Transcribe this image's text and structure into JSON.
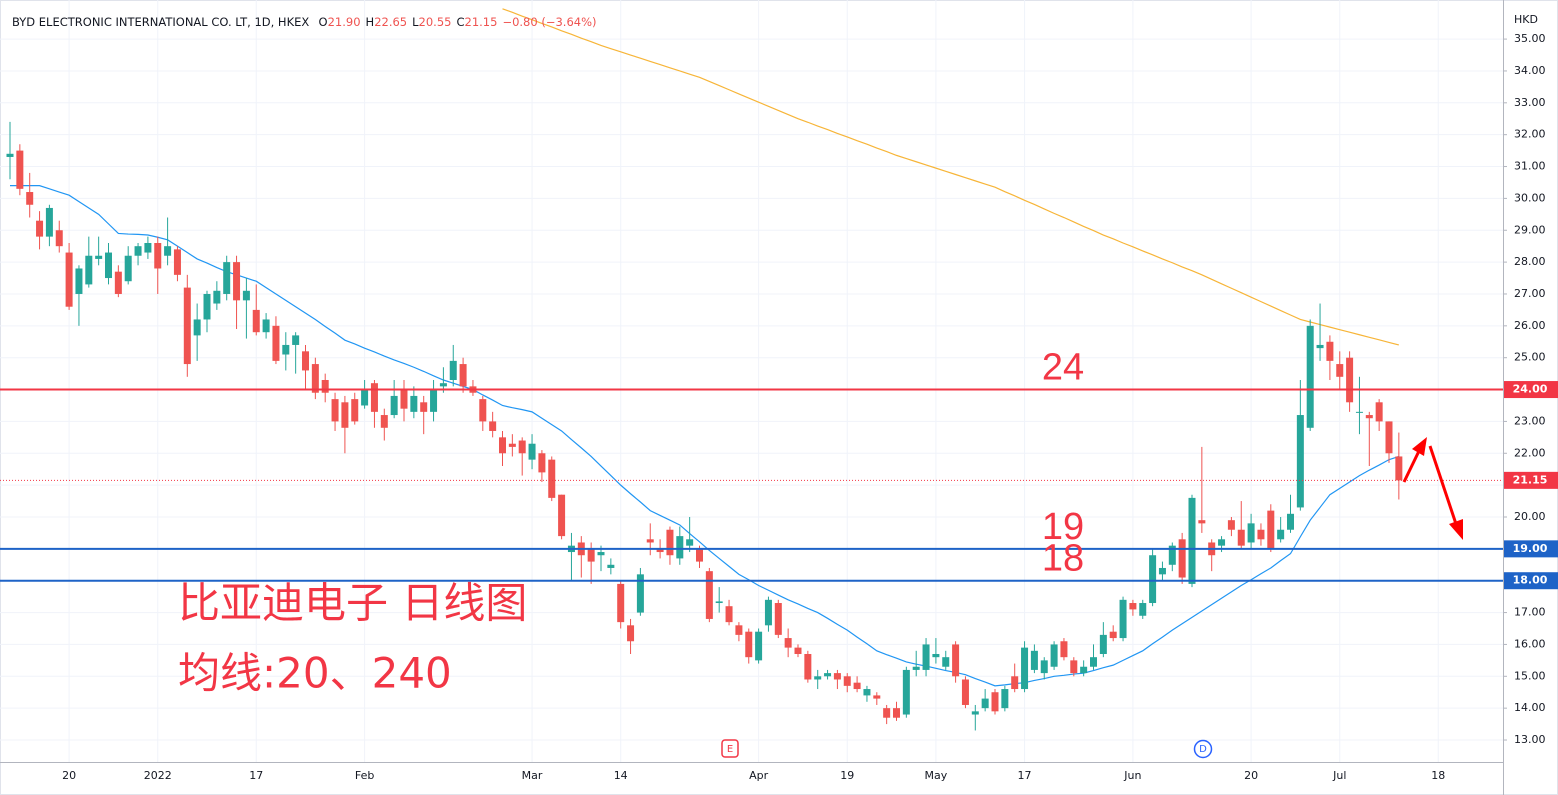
{
  "chart_data": {
    "type": "candlestick",
    "title": "BYD ELECTRONIC INTERNATIONAL CO. LT, 1D, HKEX",
    "ohlc_legend": [
      {
        "key": "O",
        "value": "21.90"
      },
      {
        "key": "H",
        "value": "22.65"
      },
      {
        "key": "L",
        "value": "20.55"
      },
      {
        "key": "C",
        "value": "21.15"
      }
    ],
    "change": "−0.80 (−3.64%)",
    "currency": "HKD",
    "annotations": [
      "比亚迪电子 日线图",
      "均线:20、240"
    ],
    "events": [
      {
        "label": "E",
        "color": "#f23645"
      },
      {
        "label": "D",
        "color": "#2962ff"
      }
    ],
    "up_color": "#26a69a",
    "down_color": "#ef5350",
    "categories": [
      null,
      null,
      null,
      null,
      null,
      null,
      "20",
      null,
      null,
      null,
      null,
      null,
      null,
      null,
      null,
      "2022",
      null,
      null,
      null,
      null,
      null,
      null,
      null,
      null,
      null,
      "17",
      null,
      null,
      null,
      null,
      null,
      null,
      null,
      null,
      null,
      null,
      "Feb",
      null,
      null,
      null,
      null,
      null,
      null,
      null,
      null,
      null,
      null,
      null,
      null,
      null,
      null,
      null,
      null,
      "Mar",
      null,
      null,
      null,
      null,
      null,
      null,
      null,
      null,
      "14",
      null,
      null,
      null,
      null,
      null,
      null,
      null,
      null,
      null,
      null,
      null,
      null,
      null,
      "Apr",
      null,
      null,
      null,
      null,
      null,
      null,
      null,
      null,
      "19",
      null,
      null,
      null,
      null,
      null,
      null,
      null,
      null,
      "May",
      null,
      null,
      null,
      null,
      null,
      null,
      null,
      null,
      "17",
      null,
      null,
      null,
      null,
      null,
      null,
      null,
      null,
      null,
      null,
      "Jun",
      null,
      null,
      null,
      null,
      null,
      null,
      null,
      null,
      null,
      null,
      null,
      "20",
      null,
      null,
      null,
      null,
      null,
      null,
      null,
      null,
      "Jul",
      null,
      null,
      null,
      null,
      null,
      null,
      null,
      null,
      null,
      "18"
    ],
    "open": [
      31.3,
      31.5,
      30.2,
      29.3,
      28.8,
      29.0,
      28.3,
      27.0,
      27.3,
      28.1,
      27.5,
      27.7,
      27.4,
      28.2,
      28.3,
      28.6,
      28.2,
      28.4,
      27.2,
      25.7,
      26.2,
      26.7,
      27.0,
      28.0,
      26.8,
      26.5,
      25.8,
      26.0,
      25.1,
      25.4,
      25.2,
      24.8,
      24.3,
      23.7,
      23.6,
      23.7,
      23.5,
      24.2,
      23.2,
      23.2,
      24.0,
      23.3,
      23.6,
      23.3,
      24.1,
      24.3,
      24.8,
      24.1,
      23.7,
      23.0,
      22.5,
      22.3,
      22.4,
      21.8,
      22.0,
      21.8,
      20.7,
      18.9,
      19.2,
      19.0,
      18.8,
      18.4,
      17.9,
      16.6,
      17.0,
      19.3,
      19.0,
      19.6,
      18.7,
      19.1,
      19.0,
      18.3,
      17.3,
      17.2,
      16.6,
      16.4,
      15.5,
      16.6,
      17.3,
      16.2,
      15.9,
      15.7,
      14.9,
      15.0,
      15.1,
      15.0,
      14.8,
      14.4,
      14.4,
      14.0,
      14.0,
      13.8,
      15.2,
      15.2,
      15.6,
      15.3,
      16.0,
      14.9,
      13.8,
      14.0,
      14.5,
      14.0,
      15.0,
      14.6,
      15.2,
      15.1,
      15.3,
      16.1,
      15.5,
      15.1,
      15.3,
      15.7,
      16.4,
      16.2,
      17.3,
      16.9,
      17.3,
      18.2,
      18.5,
      19.3,
      17.9,
      19.9,
      19.2,
      19.1,
      19.9,
      19.6,
      19.2,
      19.6,
      20.2,
      19.3,
      19.6,
      20.3,
      22.8,
      25.3,
      25.5,
      24.8,
      25.0,
      23.3,
      23.2,
      23.6,
      23.0,
      21.9,
      null,
      null,
      null,
      null
    ],
    "high": [
      32.4,
      31.7,
      30.8,
      29.6,
      29.8,
      29.3,
      28.6,
      27.9,
      28.8,
      28.8,
      28.6,
      27.9,
      28.5,
      28.6,
      28.8,
      28.8,
      29.4,
      28.5,
      27.6,
      26.7,
      27.1,
      27.4,
      28.2,
      28.2,
      27.5,
      27.3,
      26.4,
      26.3,
      25.8,
      25.8,
      25.4,
      25.0,
      24.5,
      23.9,
      23.8,
      23.9,
      24.3,
      24.3,
      23.4,
      24.3,
      24.3,
      24.1,
      23.8,
      24.3,
      24.7,
      25.4,
      25.0,
      24.3,
      23.8,
      23.3,
      22.7,
      22.6,
      22.5,
      22.6,
      22.1,
      21.9,
      20.7,
      19.5,
      19.4,
      19.2,
      19.1,
      18.7,
      18.0,
      16.8,
      18.4,
      19.8,
      19.3,
      19.7,
      19.7,
      20.0,
      19.1,
      18.4,
      17.8,
      17.4,
      16.7,
      16.5,
      16.5,
      17.5,
      17.4,
      16.5,
      16.0,
      15.8,
      15.2,
      15.2,
      15.2,
      15.1,
      15.0,
      14.7,
      14.5,
      14.1,
      14.2,
      15.3,
      15.8,
      16.2,
      16.2,
      15.8,
      16.1,
      15.0,
      14.1,
      14.6,
      14.6,
      14.7,
      15.4,
      16.1,
      16.0,
      15.6,
      16.1,
      16.2,
      15.6,
      15.5,
      16.0,
      16.7,
      16.6,
      17.5,
      17.4,
      17.4,
      19.0,
      18.6,
      19.2,
      19.5,
      20.7,
      22.2,
      19.3,
      19.4,
      20.0,
      20.5,
      20.1,
      19.8,
      20.4,
      20.0,
      20.7,
      24.3,
      26.2,
      26.7,
      25.7,
      25.2,
      25.2,
      24.4,
      23.3,
      23.7,
      23.0,
      22.65,
      null,
      null,
      null,
      null
    ],
    "low": [
      30.6,
      30.1,
      29.4,
      28.4,
      28.5,
      28.3,
      26.5,
      26.0,
      27.2,
      27.9,
      27.3,
      26.9,
      27.3,
      27.9,
      28.1,
      27.0,
      27.9,
      27.4,
      24.4,
      24.9,
      25.8,
      26.5,
      26.8,
      25.9,
      25.6,
      25.7,
      25.6,
      24.8,
      24.6,
      24.5,
      24.0,
      23.7,
      23.6,
      22.7,
      22.0,
      22.9,
      23.4,
      22.8,
      22.4,
      23.1,
      23.0,
      23.1,
      22.6,
      23.0,
      23.9,
      24.1,
      23.9,
      23.8,
      22.7,
      22.5,
      21.6,
      21.9,
      21.3,
      21.5,
      21.1,
      20.5,
      19.3,
      18.0,
      18.1,
      17.9,
      18.3,
      18.2,
      16.5,
      15.7,
      16.9,
      18.8,
      18.7,
      18.5,
      18.5,
      18.9,
      18.4,
      16.7,
      17.0,
      16.6,
      16.1,
      15.4,
      15.4,
      16.4,
      16.2,
      15.6,
      15.6,
      14.8,
      14.6,
      14.9,
      14.6,
      14.5,
      14.5,
      14.2,
      14.1,
      13.5,
      13.6,
      13.7,
      15.0,
      15.0,
      15.4,
      15.2,
      14.8,
      14.0,
      13.3,
      13.9,
      13.8,
      13.9,
      14.5,
      14.5,
      15.1,
      14.9,
      15.2,
      15.5,
      15.0,
      15.0,
      15.2,
      15.6,
      16.1,
      16.1,
      16.9,
      16.8,
      17.2,
      18.0,
      18.3,
      17.9,
      17.8,
      19.5,
      18.3,
      18.9,
      19.4,
      19.0,
      19.0,
      19.1,
      18.9,
      19.2,
      19.5,
      20.2,
      22.7,
      24.9,
      24.3,
      24.0,
      23.3,
      22.6,
      21.6,
      22.7,
      21.7,
      20.55,
      null,
      null,
      null,
      null
    ],
    "close": [
      31.4,
      30.3,
      29.8,
      28.8,
      29.7,
      28.5,
      26.6,
      27.8,
      28.2,
      28.2,
      28.3,
      27.0,
      28.2,
      28.5,
      28.6,
      27.8,
      28.5,
      27.6,
      24.8,
      26.2,
      27.0,
      27.1,
      28.0,
      26.8,
      27.1,
      25.8,
      26.2,
      24.9,
      25.4,
      25.7,
      24.6,
      23.9,
      23.9,
      23.0,
      22.8,
      23.0,
      24.0,
      23.3,
      22.8,
      23.8,
      23.4,
      23.8,
      23.3,
      24.0,
      24.2,
      24.9,
      24.1,
      23.9,
      23.0,
      22.7,
      22.0,
      22.2,
      22.0,
      22.3,
      21.4,
      20.6,
      19.4,
      19.1,
      18.8,
      18.6,
      18.9,
      18.5,
      16.7,
      16.1,
      18.2,
      19.2,
      18.9,
      18.8,
      19.4,
      19.3,
      18.6,
      16.8,
      17.35,
      16.7,
      16.3,
      15.6,
      16.4,
      17.4,
      16.3,
      15.9,
      15.7,
      14.9,
      15.0,
      15.1,
      14.9,
      14.7,
      14.6,
      14.6,
      14.3,
      13.7,
      13.7,
      15.2,
      15.3,
      16.0,
      15.7,
      15.6,
      15.0,
      14.1,
      13.9,
      14.3,
      13.9,
      14.6,
      14.6,
      15.9,
      15.8,
      15.5,
      16.0,
      15.6,
      15.1,
      15.3,
      15.6,
      16.3,
      16.2,
      17.4,
      17.1,
      17.3,
      18.8,
      18.4,
      19.1,
      18.1,
      20.6,
      19.8,
      18.8,
      19.3,
      19.6,
      19.1,
      19.8,
      19.3,
      19.0,
      19.6,
      20.1,
      23.2,
      26.0,
      25.4,
      24.9,
      24.4,
      23.6,
      23.3,
      23.1,
      23.0,
      22.0,
      21.15,
      null,
      null,
      null,
      null
    ],
    "lines": [
      {
        "color": "#2196f3",
        "values": [
          30.4,
          30.4,
          30.4,
          30.4,
          30.3,
          30.2,
          30.1,
          29.9,
          29.7,
          29.5,
          29.2,
          28.9,
          28.88,
          28.87,
          28.85,
          28.78,
          28.7,
          28.5,
          28.3,
          28.1,
          27.97,
          27.83,
          27.7,
          27.6,
          27.5,
          27.4,
          27.2,
          27.0,
          26.8,
          26.6,
          26.4,
          26.2,
          25.98,
          25.77,
          25.55,
          25.43,
          25.3,
          25.18,
          25.05,
          24.93,
          24.82,
          24.7,
          24.57,
          24.43,
          24.3,
          24.2,
          24.1,
          24.0,
          23.83,
          23.67,
          23.5,
          23.43,
          23.37,
          23.3,
          23.1,
          22.9,
          22.7,
          22.43,
          22.17,
          21.9,
          21.6,
          21.3,
          21.0,
          20.73,
          20.47,
          20.2,
          20.05,
          19.9,
          19.75,
          19.48,
          19.22,
          18.95,
          18.7,
          18.45,
          18.2,
          18.03,
          17.85,
          17.7,
          17.55,
          17.4,
          17.27,
          17.13,
          17.0,
          16.82,
          16.63,
          16.45,
          16.23,
          16.02,
          15.8,
          15.68,
          15.57,
          15.45,
          15.38,
          15.32,
          15.25,
          15.18,
          15.12,
          15.05,
          14.93,
          14.82,
          14.7,
          14.73,
          14.77,
          14.8,
          14.87,
          14.93,
          15.0,
          15.03,
          15.07,
          15.1,
          15.18,
          15.27,
          15.35,
          15.5,
          15.65,
          15.8,
          16.02,
          16.23,
          16.45,
          16.65,
          16.85,
          17.05,
          17.25,
          17.45,
          17.65,
          17.85,
          18.03,
          18.22,
          18.4,
          18.63,
          18.85,
          19.38,
          19.9,
          20.3,
          20.7,
          20.9,
          21.1,
          21.3,
          21.47,
          21.63,
          21.8,
          21.9,
          null,
          null,
          null,
          null
        ]
      },
      {
        "color": "#f7b538",
        "values": [
          null,
          null,
          null,
          null,
          null,
          null,
          null,
          null,
          null,
          null,
          null,
          null,
          null,
          null,
          null,
          null,
          null,
          null,
          null,
          null,
          null,
          null,
          null,
          null,
          null,
          null,
          null,
          null,
          null,
          null,
          null,
          null,
          null,
          null,
          null,
          null,
          null,
          null,
          null,
          null,
          null,
          null,
          null,
          null,
          null,
          null,
          null,
          null,
          null,
          null,
          35.95,
          35.84,
          35.72,
          35.61,
          35.49,
          35.38,
          35.26,
          35.15,
          35.03,
          34.92,
          34.8,
          34.7,
          34.6,
          34.5,
          34.4,
          34.3,
          34.2,
          34.1,
          34.0,
          33.9,
          33.8,
          33.67,
          33.54,
          33.41,
          33.28,
          33.15,
          33.02,
          32.89,
          32.76,
          32.63,
          32.5,
          32.39,
          32.27,
          32.16,
          32.04,
          31.93,
          31.81,
          31.7,
          31.58,
          31.47,
          31.35,
          31.25,
          31.15,
          31.05,
          30.95,
          30.85,
          30.75,
          30.65,
          30.55,
          30.45,
          30.35,
          30.21,
          30.08,
          29.94,
          29.81,
          29.67,
          29.53,
          29.4,
          29.26,
          29.12,
          28.99,
          28.85,
          28.73,
          28.6,
          28.48,
          28.35,
          28.23,
          28.1,
          27.98,
          27.85,
          27.73,
          27.6,
          27.46,
          27.32,
          27.18,
          27.04,
          26.9,
          26.76,
          26.62,
          26.48,
          26.34,
          26.2,
          26.12,
          26.04,
          25.96,
          25.88,
          25.8,
          25.72,
          25.64,
          25.56,
          25.48,
          25.4,
          null,
          null,
          null,
          null
        ]
      }
    ],
    "hlines": [
      {
        "value": 24,
        "label": "24.00",
        "note": "24",
        "color": "#f23645"
      },
      {
        "value": 19,
        "label": "19.00",
        "note": "19",
        "color": "#1e63c7"
      },
      {
        "value": 18,
        "label": "18.00",
        "note": "18",
        "color": "#1e63c7"
      }
    ],
    "price_line": {
      "value": 21.15,
      "label": "21.15",
      "color": "#f23645"
    },
    "ylim": [
      12.31,
      36.07
    ],
    "yticks": [
      {
        "value": 13,
        "label": "13.00"
      },
      {
        "value": 14,
        "label": "14.00"
      },
      {
        "value": 15,
        "label": "15.00"
      },
      {
        "value": 16,
        "label": "16.00"
      },
      {
        "value": 17,
        "label": "17.00"
      },
      {
        "value": 18,
        "label": "18.00"
      },
      {
        "value": 19,
        "label": "19.00"
      },
      {
        "value": 20,
        "label": "20.00"
      },
      {
        "value": 21,
        "label": "21.00"
      },
      {
        "value": 22,
        "label": "22.00"
      },
      {
        "value": 23,
        "label": "23.00"
      },
      {
        "value": 24,
        "label": "24.00"
      },
      {
        "value": 25,
        "label": "25.00"
      },
      {
        "value": 26,
        "label": "26.00"
      },
      {
        "value": 27,
        "label": "27.00"
      },
      {
        "value": 28,
        "label": "28.00"
      },
      {
        "value": 29,
        "label": "29.00"
      },
      {
        "value": 30,
        "label": "30.00"
      },
      {
        "value": 31,
        "label": "31.00"
      },
      {
        "value": 32,
        "label": "32.00"
      },
      {
        "value": 33,
        "label": "33.00"
      },
      {
        "value": 34,
        "label": "34.00"
      },
      {
        "value": 35,
        "label": "35.00"
      }
    ],
    "grid": true
  }
}
